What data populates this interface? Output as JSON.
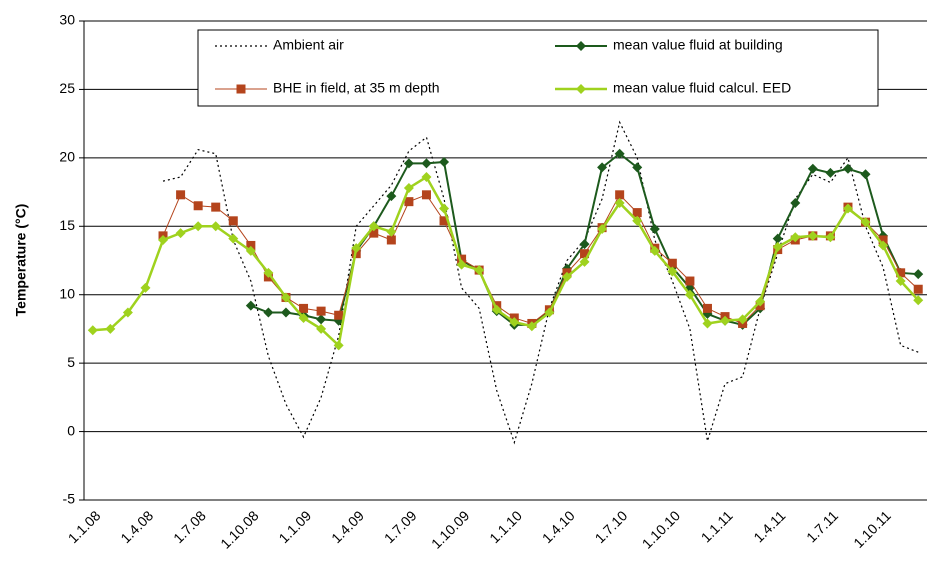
{
  "chart_data": {
    "type": "line",
    "y_label": "Temperature (°C)",
    "categories": [
      "1.1.08",
      null,
      null,
      "1.4.08",
      null,
      null,
      "1.7.08",
      null,
      null,
      "1.10.08",
      null,
      null,
      "1.1.09",
      null,
      null,
      "1.4.09",
      null,
      null,
      "1.7.09",
      null,
      null,
      "1.10.09",
      null,
      null,
      "1.1.10",
      null,
      null,
      "1.4.10",
      null,
      null,
      "1.7.10",
      null,
      null,
      "1.10.10",
      null,
      null,
      "1.1.11",
      null,
      null,
      "1.4.11",
      null,
      null,
      "1.7.11",
      null,
      null,
      "1.10.11",
      null,
      null
    ],
    "series": [
      {
        "name": "Ambient air",
        "color": "#000000",
        "marker": "none",
        "line_style": "dotted",
        "line_width": 1.2,
        "values": [
          null,
          null,
          null,
          null,
          18.3,
          18.6,
          20.6,
          20.3,
          14.0,
          11.0,
          5.5,
          2.0,
          -0.4,
          2.5,
          7.0,
          15.0,
          16.5,
          18.0,
          20.5,
          21.5,
          17.0,
          10.5,
          9.0,
          3.0,
          -0.8,
          3.5,
          9.0,
          12.5,
          14.0,
          17.0,
          22.6,
          20.0,
          14.0,
          11.0,
          7.5,
          -0.7,
          3.5,
          4.0,
          9.0,
          13.0,
          17.0,
          18.8,
          18.2,
          20.0,
          15.0,
          12.0,
          6.3,
          5.8
        ]
      },
      {
        "name": "mean value fluid at building",
        "color": "#1d5a1d",
        "marker": "diamond",
        "line_style": "solid",
        "line_width": 2,
        "values": [
          null,
          null,
          null,
          null,
          null,
          null,
          null,
          null,
          null,
          9.2,
          8.7,
          8.7,
          8.5,
          8.2,
          8.1,
          13.2,
          15.0,
          17.2,
          19.6,
          19.6,
          19.7,
          12.5,
          11.8,
          8.8,
          7.8,
          7.8,
          8.8,
          11.9,
          13.7,
          19.3,
          20.3,
          19.3,
          14.8,
          12.0,
          10.5,
          8.6,
          8.1,
          7.8,
          9.0,
          14.1,
          16.7,
          19.2,
          18.9,
          19.2,
          18.8,
          14.3,
          11.6,
          11.5
        ]
      },
      {
        "name": "BHE in field, at 35 m depth",
        "color": "#b4441c",
        "marker": "square",
        "line_style": "solid",
        "line_width": 1,
        "values": [
          null,
          null,
          null,
          null,
          14.3,
          17.3,
          16.5,
          16.4,
          15.4,
          13.6,
          11.3,
          9.8,
          9.0,
          8.8,
          8.5,
          13.0,
          14.5,
          14.0,
          16.8,
          17.3,
          15.4,
          12.6,
          11.8,
          9.2,
          8.3,
          7.9,
          8.9,
          11.6,
          13.0,
          14.9,
          17.3,
          16.0,
          13.4,
          12.3,
          11.0,
          9.0,
          8.4,
          7.9,
          9.2,
          13.3,
          14.0,
          14.3,
          14.3,
          16.4,
          15.3,
          14.0,
          11.6,
          10.4
        ]
      },
      {
        "name": "mean value fluid calcul. EED",
        "color": "#9fd21e",
        "marker": "diamond",
        "line_style": "solid",
        "line_width": 2.5,
        "values": [
          7.4,
          7.5,
          8.7,
          10.5,
          14.0,
          14.5,
          15.0,
          15.0,
          14.1,
          13.2,
          11.6,
          9.8,
          8.3,
          7.5,
          6.3,
          13.4,
          15.0,
          14.6,
          17.8,
          18.6,
          16.3,
          12.2,
          11.8,
          8.9,
          8.0,
          7.7,
          8.7,
          11.3,
          12.4,
          14.8,
          16.7,
          15.4,
          13.2,
          11.7,
          10.0,
          7.9,
          8.1,
          8.2,
          9.5,
          13.5,
          14.2,
          14.3,
          14.2,
          16.3,
          15.3,
          13.6,
          11.0,
          9.6
        ]
      }
    ],
    "ylim": [
      -5,
      30
    ],
    "yticks": [
      -5,
      0,
      5,
      10,
      15,
      20,
      25,
      30
    ],
    "grid": true,
    "legend": "top"
  }
}
